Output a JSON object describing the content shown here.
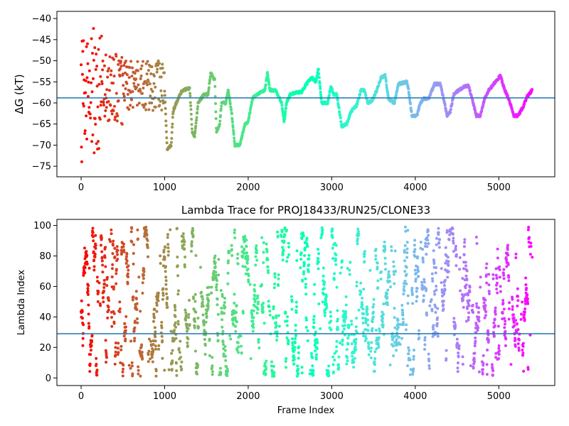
{
  "chart_data": [
    {
      "type": "scatter",
      "title": "",
      "xlabel": "",
      "ylabel": "ΔG (kT)",
      "xlim": [
        -290,
        5670
      ],
      "ylim": [
        -77.5,
        -38.3
      ],
      "xticks": [
        0,
        1000,
        2000,
        3000,
        4000,
        5000
      ],
      "yticks": [
        -75,
        -70,
        -65,
        -60,
        -55,
        -50,
        -45,
        -40
      ],
      "hline": -58.8,
      "hline_color": "#1f77b4",
      "colormap": "rainbow (red at frame 0 to violet at frame 5400)",
      "n_frames": 5400,
      "trace_anchors": [
        [
          1000,
          -57
        ],
        [
          1030,
          -71
        ],
        [
          1080,
          -70
        ],
        [
          1100,
          -62
        ],
        [
          1180,
          -58
        ],
        [
          1220,
          -57
        ],
        [
          1300,
          -56.5
        ],
        [
          1330,
          -67
        ],
        [
          1360,
          -68
        ],
        [
          1400,
          -60
        ],
        [
          1470,
          -58
        ],
        [
          1520,
          -58
        ],
        [
          1550,
          -53
        ],
        [
          1600,
          -54.5
        ],
        [
          1620,
          -67
        ],
        [
          1660,
          -65
        ],
        [
          1680,
          -60
        ],
        [
          1730,
          -60
        ],
        [
          1760,
          -57
        ],
        [
          1800,
          -62
        ],
        [
          1840,
          -70
        ],
        [
          1900,
          -70
        ],
        [
          1960,
          -65
        ],
        [
          2000,
          -64.5
        ],
        [
          2050,
          -59
        ],
        [
          2100,
          -58
        ],
        [
          2200,
          -57
        ],
        [
          2230,
          -53
        ],
        [
          2260,
          -57
        ],
        [
          2330,
          -57
        ],
        [
          2400,
          -60
        ],
        [
          2430,
          -64.5
        ],
        [
          2460,
          -60
        ],
        [
          2500,
          -58
        ],
        [
          2580,
          -57.5
        ],
        [
          2640,
          -57.5
        ],
        [
          2680,
          -56
        ],
        [
          2760,
          -54
        ],
        [
          2810,
          -55
        ],
        [
          2840,
          -52
        ],
        [
          2880,
          -60
        ],
        [
          2950,
          -60
        ],
        [
          2990,
          -56
        ],
        [
          3020,
          -58
        ],
        [
          3060,
          -58
        ],
        [
          3120,
          -65.5
        ],
        [
          3180,
          -65
        ],
        [
          3230,
          -62
        ],
        [
          3300,
          -60.5
        ],
        [
          3350,
          -57
        ],
        [
          3390,
          -57
        ],
        [
          3430,
          -60
        ],
        [
          3480,
          -59.5
        ],
        [
          3540,
          -57
        ],
        [
          3590,
          -54
        ],
        [
          3640,
          -53.5
        ],
        [
          3680,
          -59
        ],
        [
          3750,
          -60
        ],
        [
          3800,
          -55.5
        ],
        [
          3900,
          -55
        ],
        [
          3920,
          -57
        ],
        [
          3960,
          -63
        ],
        [
          4020,
          -63
        ],
        [
          4060,
          -60
        ],
        [
          4100,
          -59
        ],
        [
          4160,
          -59
        ],
        [
          4230,
          -55.5
        ],
        [
          4300,
          -55.5
        ],
        [
          4340,
          -59
        ],
        [
          4380,
          -63
        ],
        [
          4420,
          -62
        ],
        [
          4460,
          -58
        ],
        [
          4520,
          -57
        ],
        [
          4600,
          -56
        ],
        [
          4640,
          -56
        ],
        [
          4680,
          -59
        ],
        [
          4730,
          -63
        ],
        [
          4780,
          -63
        ],
        [
          4830,
          -59
        ],
        [
          4880,
          -57
        ],
        [
          4960,
          -55
        ],
        [
          5020,
          -53.5
        ],
        [
          5070,
          -57
        ],
        [
          5120,
          -59
        ],
        [
          5180,
          -63
        ],
        [
          5230,
          -63
        ],
        [
          5290,
          -61
        ],
        [
          5340,
          -58.5
        ],
        [
          5400,
          -57
        ]
      ]
    },
    {
      "type": "scatter",
      "title": "Lambda Trace for PROJ18433/RUN25/CLONE33",
      "xlabel": "Frame Index",
      "ylabel": "Lambda Index",
      "xlim": [
        -290,
        5670
      ],
      "ylim": [
        -5,
        104
      ],
      "xticks": [
        0,
        1000,
        2000,
        3000,
        4000,
        5000
      ],
      "yticks": [
        0,
        20,
        40,
        60,
        80,
        100
      ],
      "hline": 29,
      "hline_color": "#1f77b4",
      "colormap": "rainbow (red at frame 0 to violet at frame 5400)",
      "n_frames": 5400,
      "lambda_range": [
        1,
        99
      ]
    }
  ]
}
